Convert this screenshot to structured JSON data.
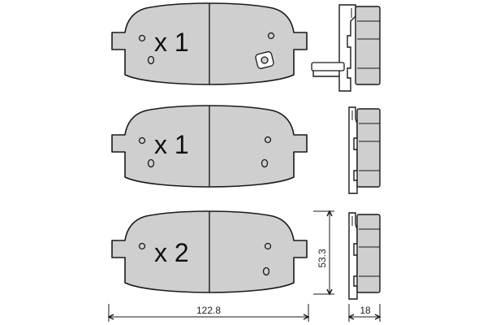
{
  "pads": [
    {
      "quantity_label": "x 1",
      "has_wear_sensor": true
    },
    {
      "quantity_label": "x 1",
      "has_wear_sensor": false
    },
    {
      "quantity_label": "x 2",
      "has_wear_sensor": false
    }
  ],
  "dimensions": {
    "width": "122.8",
    "height": "53.3",
    "thickness": "18"
  }
}
